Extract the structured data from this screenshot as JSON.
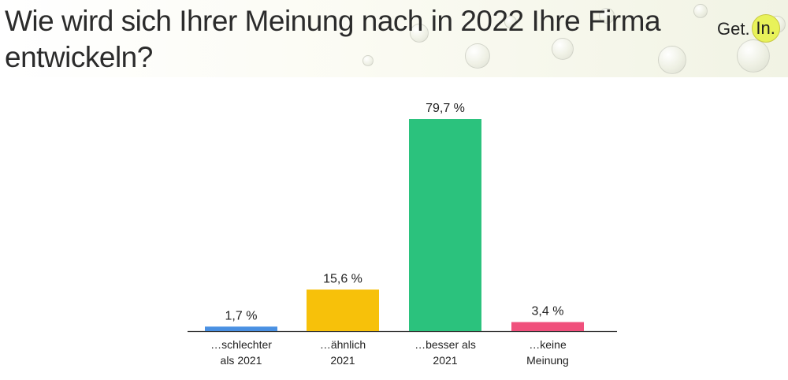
{
  "title": "Wie wird sich Ihrer Meinung nach in 2022 Ihre Firma entwickeln?",
  "logo": {
    "text": "Get.",
    "badge": "In."
  },
  "chart_data": {
    "type": "bar",
    "title": "Wie wird sich Ihrer Meinung nach in 2022 Ihre Firma entwickeln?",
    "categories": [
      "…schlechter als 2021",
      "…ähnlich 2021",
      "…besser als 2021",
      "…keine Meinung"
    ],
    "category_lines": [
      [
        "…schlechter",
        "als 2021"
      ],
      [
        "…ähnlich",
        "2021"
      ],
      [
        "…besser als",
        "2021"
      ],
      [
        "…keine",
        "Meinung"
      ]
    ],
    "values": [
      1.7,
      15.6,
      79.7,
      3.4
    ],
    "value_labels": [
      "1,7 %",
      "15,6 %",
      "79,7 %",
      "3,4 %"
    ],
    "colors": [
      "#4a90e2",
      "#f7c10a",
      "#2bc27d",
      "#f0507c"
    ],
    "xlabel": "",
    "ylabel": "",
    "ylim": [
      0,
      80
    ],
    "grid": false,
    "legend": "none",
    "unit": "%"
  }
}
